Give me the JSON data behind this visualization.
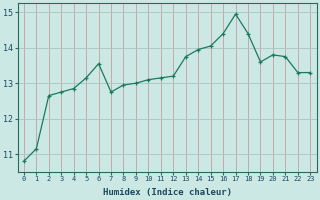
{
  "x": [
    0,
    1,
    2,
    3,
    4,
    5,
    6,
    7,
    8,
    9,
    10,
    11,
    12,
    13,
    14,
    15,
    16,
    17,
    18,
    19,
    20,
    21,
    22,
    23
  ],
  "y": [
    10.8,
    11.15,
    12.65,
    12.75,
    12.85,
    13.15,
    13.55,
    12.75,
    12.95,
    13.0,
    13.1,
    13.15,
    13.2,
    13.75,
    13.95,
    14.05,
    14.4,
    14.95,
    14.4,
    13.6,
    13.8,
    13.75,
    13.3,
    13.3
  ],
  "line_color": "#1a7a5e",
  "marker": "+",
  "marker_color": "#1a7a5e",
  "bg_color": "#cce8e4",
  "grid_color": "#b0c8c4",
  "grid_color_v": "#c8a8a8",
  "xlabel": "Humidex (Indice chaleur)",
  "xlabel_color": "#1a4a5e",
  "tick_color": "#1a4a5e",
  "ylim": [
    10.5,
    15.25
  ],
  "yticks": [
    11,
    12,
    13,
    14,
    15
  ],
  "xlim": [
    -0.5,
    23.5
  ],
  "xticks": [
    0,
    1,
    2,
    3,
    4,
    5,
    6,
    7,
    8,
    9,
    10,
    11,
    12,
    13,
    14,
    15,
    16,
    17,
    18,
    19,
    20,
    21,
    22,
    23
  ]
}
